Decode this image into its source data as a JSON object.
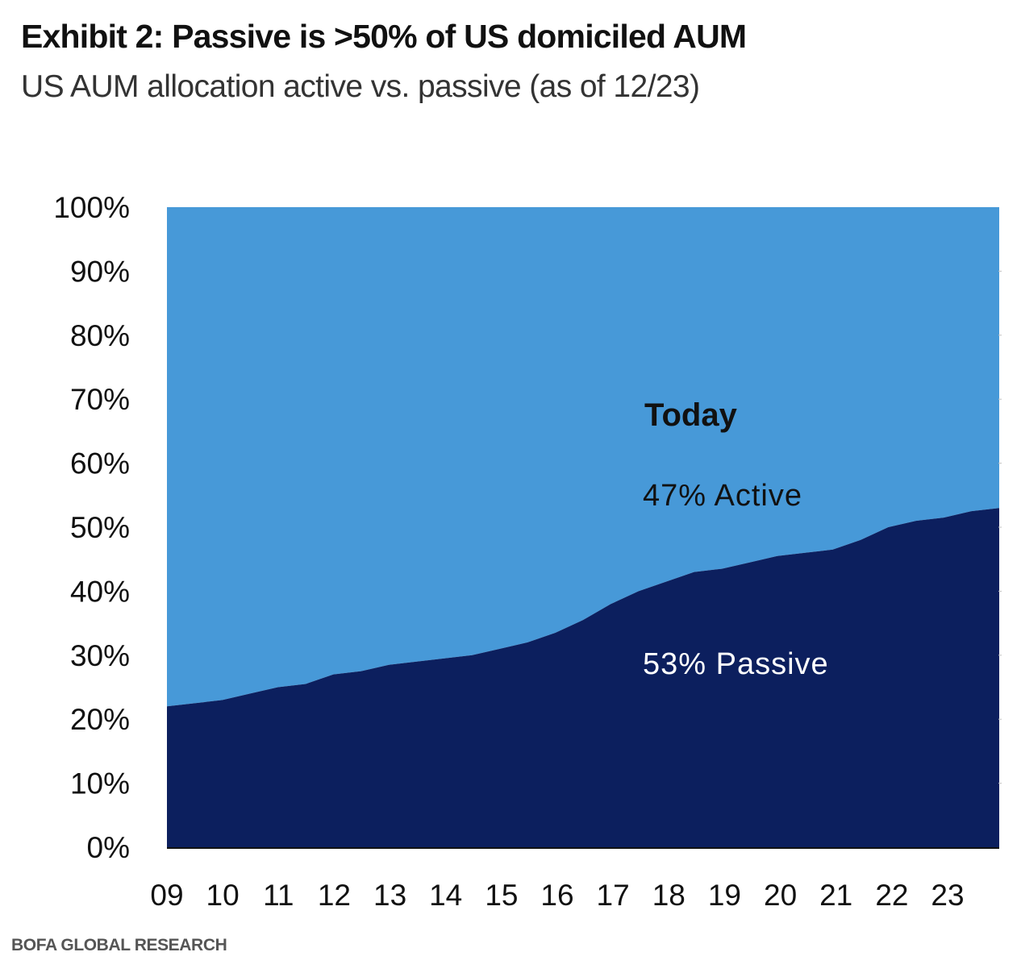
{
  "header": {
    "title": "Exhibit 2: Passive is >50% of US domiciled AUM",
    "subtitle": "US AUM allocation active vs. passive (as of 12/23)"
  },
  "footer": {
    "source": "BOFA GLOBAL RESEARCH"
  },
  "colors": {
    "active": "#4799D8",
    "passive": "#0C1F5E",
    "axis": "#111111"
  },
  "chart_data": {
    "type": "area",
    "stacked": true,
    "normalized_percent": true,
    "title": "Exhibit 2: Passive is >50% of US domiciled AUM",
    "subtitle": "US AUM allocation active vs. passive (as of 12/23)",
    "xlabel": "",
    "ylabel": "",
    "ylim": [
      0,
      100
    ],
    "y_ticks": [
      "0%",
      "10%",
      "20%",
      "30%",
      "40%",
      "50%",
      "60%",
      "70%",
      "80%",
      "90%",
      "100%"
    ],
    "x_tick_labels": [
      "09",
      "10",
      "11",
      "12",
      "13",
      "14",
      "15",
      "16",
      "17",
      "18",
      "19",
      "20",
      "21",
      "22",
      "23"
    ],
    "x_range": [
      2009.0,
      2024.0
    ],
    "x": [
      2009.0,
      2009.5,
      2010.0,
      2010.5,
      2011.0,
      2011.5,
      2012.0,
      2012.5,
      2013.0,
      2013.5,
      2014.0,
      2014.5,
      2015.0,
      2015.5,
      2016.0,
      2016.5,
      2017.0,
      2017.5,
      2018.0,
      2018.5,
      2019.0,
      2019.5,
      2020.0,
      2020.5,
      2021.0,
      2021.5,
      2022.0,
      2022.5,
      2023.0,
      2023.5,
      2024.0
    ],
    "series": [
      {
        "name": "Passive",
        "values": [
          22,
          22.5,
          23,
          24,
          25,
          25.5,
          27,
          27.5,
          28.5,
          29,
          29.5,
          30,
          31,
          32,
          33.5,
          35.5,
          38,
          40,
          41.5,
          43,
          43.5,
          44.5,
          45.5,
          46,
          46.5,
          48,
          50,
          51,
          51.5,
          52.5,
          53
        ]
      },
      {
        "name": "Active",
        "values": [
          78,
          77.5,
          77,
          76,
          75,
          74.5,
          73,
          72.5,
          71.5,
          71,
          70.5,
          70,
          69,
          68,
          66.5,
          64.5,
          62,
          60,
          58.5,
          57,
          56.5,
          55.5,
          54.5,
          54,
          53.5,
          52,
          50,
          49,
          48.5,
          47.5,
          47
        ]
      }
    ],
    "annotations": {
      "today": "Today",
      "active": "47% Active",
      "passive": "53% Passive"
    }
  }
}
